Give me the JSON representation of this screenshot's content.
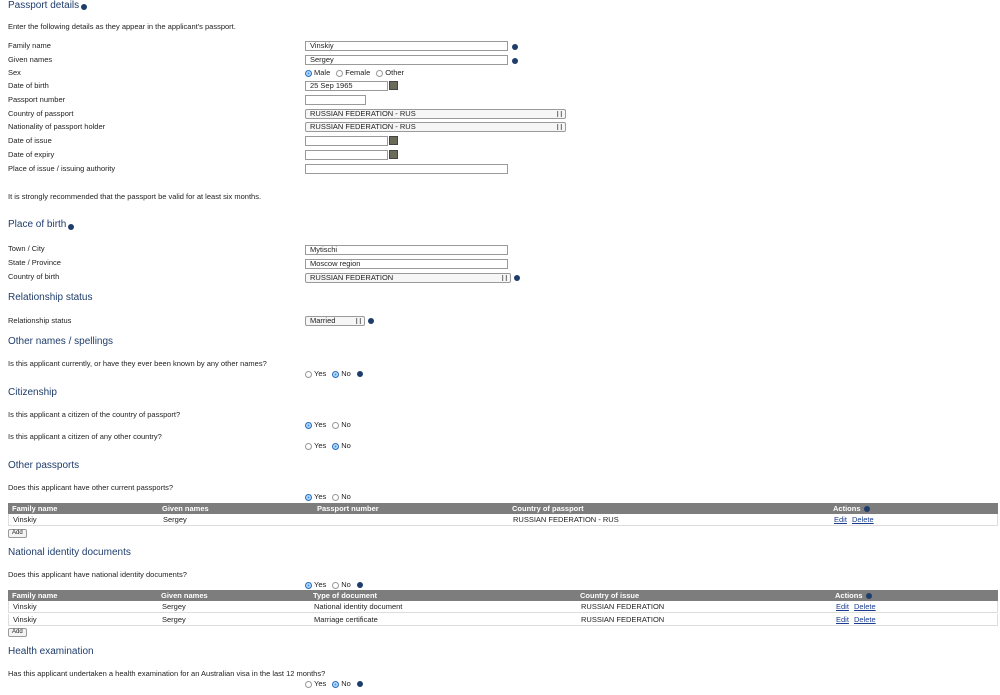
{
  "passport": {
    "title": "Passport details",
    "intro": "Enter the following details as they appear in the applicant's passport.",
    "fields": [
      {
        "label": "Family name",
        "value": "Vinskiy"
      },
      {
        "label": "Given names",
        "value": "Sergey"
      },
      {
        "label": "Sex",
        "options": [
          "Male",
          "Female",
          "Other"
        ],
        "selected": 0
      },
      {
        "label": "Date of birth",
        "value": "25 Sep 1965"
      },
      {
        "label": "Passport number"
      },
      {
        "label": "Country of passport",
        "value": "RUSSIAN FEDERATION - RUS"
      },
      {
        "label": "Nationality of passport holder",
        "value": "RUSSIAN FEDERATION - RUS"
      },
      {
        "label": "Date of issue"
      },
      {
        "label": "Date of expiry"
      },
      {
        "label": "Place of issue / issuing authority"
      }
    ],
    "note": "It is strongly recommended that the passport be valid for at least six months."
  },
  "place_of_birth": {
    "title": "Place of birth",
    "fields": [
      {
        "label": "Town / City",
        "value": "Mytischi"
      },
      {
        "label": "State / Province",
        "value": "Moscow region"
      },
      {
        "label": "Country of birth",
        "value": "RUSSIAN FEDERATION"
      }
    ]
  },
  "relationship": {
    "title": "Relationship status",
    "fields": [
      {
        "label": "Relationship status",
        "value": "Married"
      }
    ]
  },
  "other_names": {
    "title": "Other names / spellings",
    "questions": [
      {
        "text": "Is this applicant currently, or have they ever been known by any other names?",
        "options": [
          "Yes",
          "No"
        ],
        "selected": 1
      }
    ]
  },
  "citizenship": {
    "title": "Citizenship",
    "questions": [
      {
        "text": "Is this applicant a citizen of the country of passport?",
        "options": [
          "Yes",
          "No"
        ],
        "selected": 0
      },
      {
        "text": "Is this applicant a citizen of any other country?",
        "options": [
          "Yes",
          "No"
        ],
        "selected": 1
      }
    ]
  },
  "other_passports": {
    "title": "Other passports",
    "questions": [
      {
        "text": "Does this applicant have other current passports?",
        "options": [
          "Yes",
          "No"
        ],
        "selected": 0
      }
    ],
    "table": {
      "columns": [
        "Family name",
        "Given names",
        "Passport number",
        "Country of passport",
        "Actions"
      ],
      "rows": [
        {
          "cells": [
            "Vinskiy",
            "Sergey",
            null,
            "RUSSIAN FEDERATION - RUS"
          ],
          "actions": [
            "Edit",
            "Delete"
          ]
        }
      ],
      "add": "Add"
    }
  },
  "national_id": {
    "title": "National identity documents",
    "questions": [
      {
        "text": "Does this applicant have national identity documents?",
        "options": [
          "Yes",
          "No"
        ],
        "selected": 0
      }
    ],
    "table": {
      "columns": [
        "Family name",
        "Given names",
        "Type of document",
        "Country of issue",
        "Actions"
      ],
      "rows": [
        {
          "cells": [
            "Vinskiy",
            "Sergey",
            "National identity document",
            "RUSSIAN FEDERATION"
          ],
          "actions": [
            "Edit",
            "Delete"
          ]
        },
        {
          "cells": [
            "Vinskiy",
            "Sergey",
            "Marriage certificate",
            "RUSSIAN FEDERATION"
          ],
          "actions": [
            "Edit",
            "Delete"
          ]
        }
      ],
      "add": "Add"
    }
  },
  "health": {
    "title": "Health examination",
    "questions": [
      {
        "text": "Has this applicant undertaken a health examination for an Australian visa in the last 12 months?",
        "options": [
          "Yes",
          "No"
        ],
        "selected": 1
      }
    ]
  }
}
